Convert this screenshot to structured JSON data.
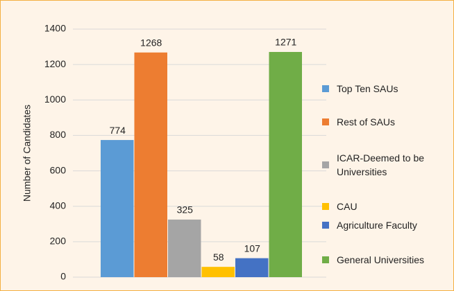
{
  "chart_data": {
    "type": "bar",
    "y_label": "Number of Candidates",
    "series": [
      {
        "name": "Top Ten SAUs",
        "color": "#5b9bd5",
        "values": [
          774
        ]
      },
      {
        "name": "Rest of SAUs",
        "color": "#ed7d31",
        "values": [
          1268
        ]
      },
      {
        "name": "ICAR-Deemed to be Universities",
        "color": "#a5a5a5",
        "values": [
          325
        ]
      },
      {
        "name": "CAU",
        "color": "#ffc000",
        "values": [
          58
        ]
      },
      {
        "name": "Agriculture Faculty",
        "color": "#4472c4",
        "values": [
          107
        ]
      },
      {
        "name": "General Universities",
        "color": "#70ad47",
        "values": [
          1271
        ]
      }
    ],
    "ylim": [
      0,
      1400
    ],
    "yticks": [
      0,
      200,
      400,
      600,
      800,
      1000,
      1200,
      1400
    ],
    "grid": true
  }
}
